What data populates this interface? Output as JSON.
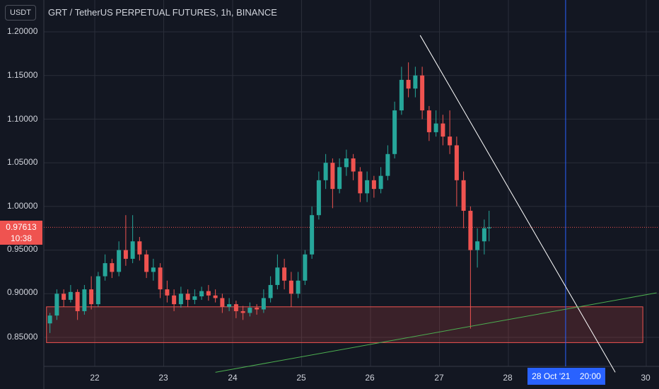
{
  "header": {
    "title": "GRT / TetherUS PERPETUAL FUTURES, 1h, BINANCE",
    "unit_label": "USDT"
  },
  "price_marker": {
    "price": "0.97613",
    "countdown": "10:38",
    "color": "#ef5350"
  },
  "crosshair_date": {
    "date": "28 Oct '21",
    "time": "20:00",
    "color": "#2962ff"
  },
  "colors": {
    "background": "#131722",
    "up": "#26a69a",
    "down": "#ef5350",
    "grid": "#2a2e39",
    "trendline": "#ffffff",
    "support_line": "#4caf50",
    "zone": "#ef5350"
  },
  "chart_data": {
    "type": "candlestick",
    "title": "GRT / TetherUS PERPETUAL FUTURES, 1h, BINANCE",
    "y_ticks": [
      "1.20000",
      "1.15000",
      "1.10000",
      "1.05000",
      "1.00000",
      "0.95000",
      "0.90000",
      "0.85000"
    ],
    "x_ticks": [
      "22",
      "23",
      "24",
      "25",
      "26",
      "27",
      "28",
      "30"
    ],
    "ylim": [
      0.81,
      1.21
    ],
    "xlim": [
      21.3,
      30.15
    ],
    "grid": true,
    "current_price": 0.97613,
    "support_zone": {
      "low": 0.844,
      "high": 0.885,
      "x_start": 21.3,
      "x_end": 29.95
    },
    "trendline_down": {
      "x": [
        26.72,
        29.55
      ],
      "y": [
        1.196,
        0.81
      ]
    },
    "trendline_up": {
      "x": [
        23.75,
        30.15
      ],
      "y": [
        0.81,
        0.901
      ]
    },
    "vertical_marker_x": 28.83,
    "candles": [
      [
        21.35,
        0.866,
        0.875,
        0.855,
        0.878
      ],
      [
        21.45,
        0.875,
        0.9,
        0.87,
        0.905
      ],
      [
        21.55,
        0.9,
        0.893,
        0.885,
        0.905
      ],
      [
        21.65,
        0.893,
        0.902,
        0.89,
        0.91
      ],
      [
        21.75,
        0.902,
        0.88,
        0.87,
        0.905
      ],
      [
        21.85,
        0.88,
        0.905,
        0.876,
        0.91
      ],
      [
        21.95,
        0.905,
        0.888,
        0.882,
        0.92
      ],
      [
        22.05,
        0.888,
        0.92,
        0.885,
        0.925
      ],
      [
        22.15,
        0.92,
        0.935,
        0.915,
        0.945
      ],
      [
        22.25,
        0.935,
        0.925,
        0.918,
        0.94
      ],
      [
        22.35,
        0.925,
        0.95,
        0.92,
        0.96
      ],
      [
        22.45,
        0.95,
        0.94,
        0.932,
        0.99
      ],
      [
        22.55,
        0.94,
        0.96,
        0.935,
        0.99
      ],
      [
        22.65,
        0.96,
        0.945,
        0.938,
        0.965
      ],
      [
        22.75,
        0.945,
        0.925,
        0.918,
        0.95
      ],
      [
        22.85,
        0.925,
        0.93,
        0.915,
        0.94
      ],
      [
        22.95,
        0.93,
        0.905,
        0.895,
        0.935
      ],
      [
        23.05,
        0.905,
        0.898,
        0.89,
        0.915
      ],
      [
        23.15,
        0.898,
        0.888,
        0.88,
        0.905
      ],
      [
        23.25,
        0.888,
        0.9,
        0.884,
        0.908
      ],
      [
        23.35,
        0.9,
        0.893,
        0.885,
        0.905
      ],
      [
        23.45,
        0.893,
        0.897,
        0.888,
        0.905
      ],
      [
        23.55,
        0.897,
        0.903,
        0.893,
        0.908
      ],
      [
        23.65,
        0.903,
        0.898,
        0.892,
        0.91
      ],
      [
        23.75,
        0.898,
        0.895,
        0.89,
        0.905
      ],
      [
        23.85,
        0.895,
        0.885,
        0.878,
        0.9
      ],
      [
        23.95,
        0.885,
        0.888,
        0.88,
        0.895
      ],
      [
        24.05,
        0.888,
        0.88,
        0.872,
        0.892
      ],
      [
        24.15,
        0.88,
        0.878,
        0.87,
        0.886
      ],
      [
        24.25,
        0.878,
        0.884,
        0.874,
        0.89
      ],
      [
        24.35,
        0.884,
        0.882,
        0.876,
        0.888
      ],
      [
        24.45,
        0.882,
        0.895,
        0.878,
        0.905
      ],
      [
        24.55,
        0.895,
        0.91,
        0.89,
        0.92
      ],
      [
        24.65,
        0.91,
        0.93,
        0.905,
        0.945
      ],
      [
        24.75,
        0.93,
        0.915,
        0.905,
        0.94
      ],
      [
        24.85,
        0.915,
        0.9,
        0.885,
        0.925
      ],
      [
        24.95,
        0.9,
        0.915,
        0.895,
        0.925
      ],
      [
        25.05,
        0.915,
        0.945,
        0.91,
        0.95
      ],
      [
        25.15,
        0.945,
        0.99,
        0.94,
        1.0
      ],
      [
        25.25,
        0.99,
        1.03,
        0.985,
        1.04
      ],
      [
        25.35,
        1.03,
        1.05,
        1.02,
        1.06
      ],
      [
        25.45,
        1.05,
        1.02,
        0.998,
        1.055
      ],
      [
        25.55,
        1.02,
        1.045,
        1.015,
        1.055
      ],
      [
        25.65,
        1.045,
        1.055,
        1.035,
        1.065
      ],
      [
        25.75,
        1.055,
        1.04,
        1.03,
        1.06
      ],
      [
        25.85,
        1.04,
        1.015,
        1.005,
        1.045
      ],
      [
        25.95,
        1.015,
        1.03,
        1.005,
        1.04
      ],
      [
        26.05,
        1.03,
        1.02,
        1.01,
        1.035
      ],
      [
        26.15,
        1.02,
        1.035,
        1.015,
        1.045
      ],
      [
        26.25,
        1.035,
        1.06,
        1.03,
        1.07
      ],
      [
        26.35,
        1.06,
        1.11,
        1.055,
        1.12
      ],
      [
        26.45,
        1.11,
        1.145,
        1.105,
        1.16
      ],
      [
        26.55,
        1.145,
        1.135,
        1.125,
        1.165
      ],
      [
        26.65,
        1.135,
        1.15,
        1.125,
        1.16
      ],
      [
        26.75,
        1.15,
        1.11,
        1.1,
        1.16
      ],
      [
        26.85,
        1.11,
        1.085,
        1.075,
        1.115
      ],
      [
        26.95,
        1.085,
        1.095,
        1.08,
        1.11
      ],
      [
        27.05,
        1.095,
        1.08,
        1.07,
        1.105
      ],
      [
        27.15,
        1.08,
        1.07,
        1.06,
        1.11
      ],
      [
        27.25,
        1.07,
        1.03,
        1.0,
        1.08
      ],
      [
        27.35,
        1.03,
        0.995,
        0.975,
        1.04
      ],
      [
        27.45,
        0.995,
        0.95,
        0.86,
        1.0
      ],
      [
        27.55,
        0.95,
        0.96,
        0.93,
        0.975
      ],
      [
        27.65,
        0.96,
        0.975,
        0.945,
        0.985
      ],
      [
        27.72,
        0.975,
        0.976,
        0.96,
        0.995
      ]
    ]
  }
}
